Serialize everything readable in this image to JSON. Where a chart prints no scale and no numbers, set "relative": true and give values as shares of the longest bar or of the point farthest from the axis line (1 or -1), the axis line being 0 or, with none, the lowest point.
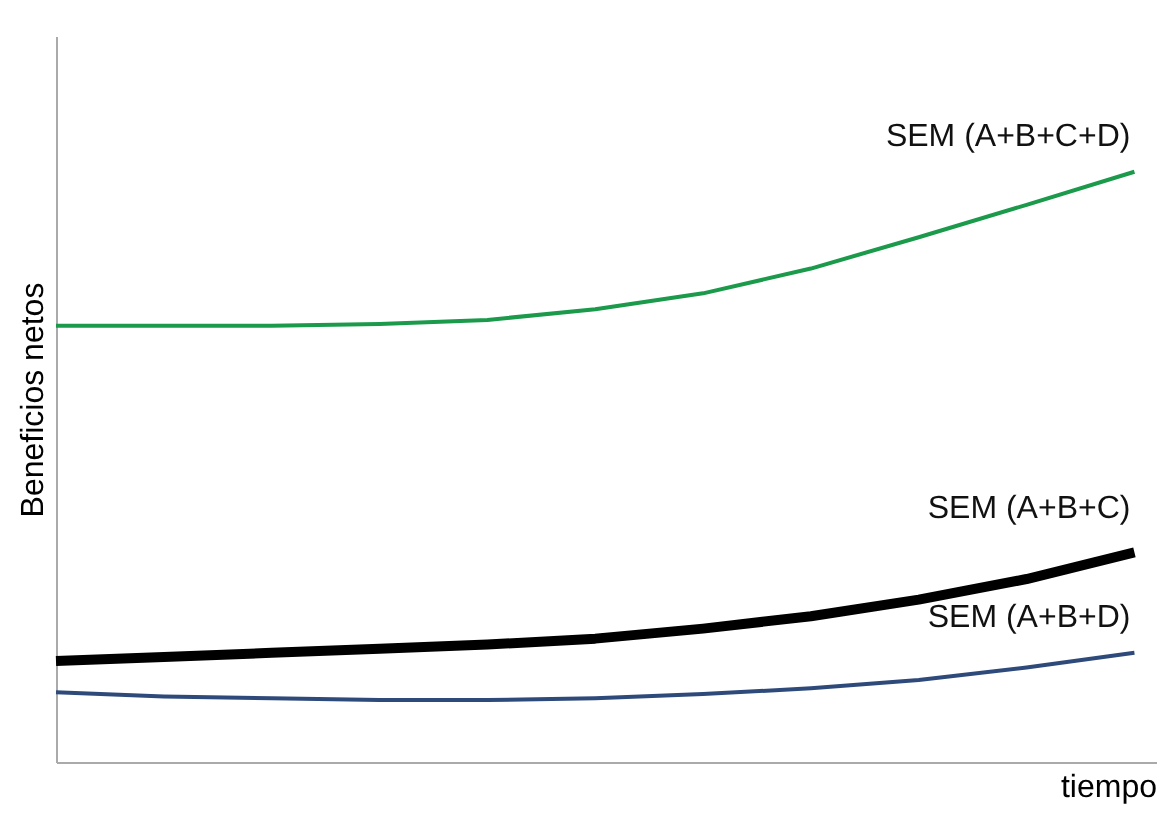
{
  "chart_data": {
    "type": "line",
    "relative": true,
    "ylabel": "Beneficios netos",
    "xlabel": "tiempo",
    "legend": false,
    "grid": false,
    "tick_labels": false,
    "marker": "none",
    "line_style": "solid",
    "categories": [
      null,
      null,
      null,
      null,
      null,
      null,
      null,
      null,
      null,
      null,
      null
    ],
    "series": [
      {
        "name": "SEM (A+B+C+D)",
        "color": "#1a9a4a",
        "values": [
          0.739,
          0.739,
          0.739,
          0.742,
          0.749,
          0.767,
          0.794,
          0.836,
          0.889,
          0.944,
          1
        ]
      },
      {
        "name": "SEM (A+B+C)",
        "color": "#000000",
        "values": [
          0.171,
          0.178,
          0.185,
          0.192,
          0.199,
          0.209,
          0.226,
          0.247,
          0.275,
          0.31,
          0.355
        ]
      },
      {
        "name": "SEM (A+B+D)",
        "color": "#2e4a7a",
        "values": [
          0.118,
          0.111,
          0.108,
          0.105,
          0.105,
          0.108,
          0.115,
          0.125,
          0.139,
          0.16,
          0.185
        ]
      }
    ]
  }
}
